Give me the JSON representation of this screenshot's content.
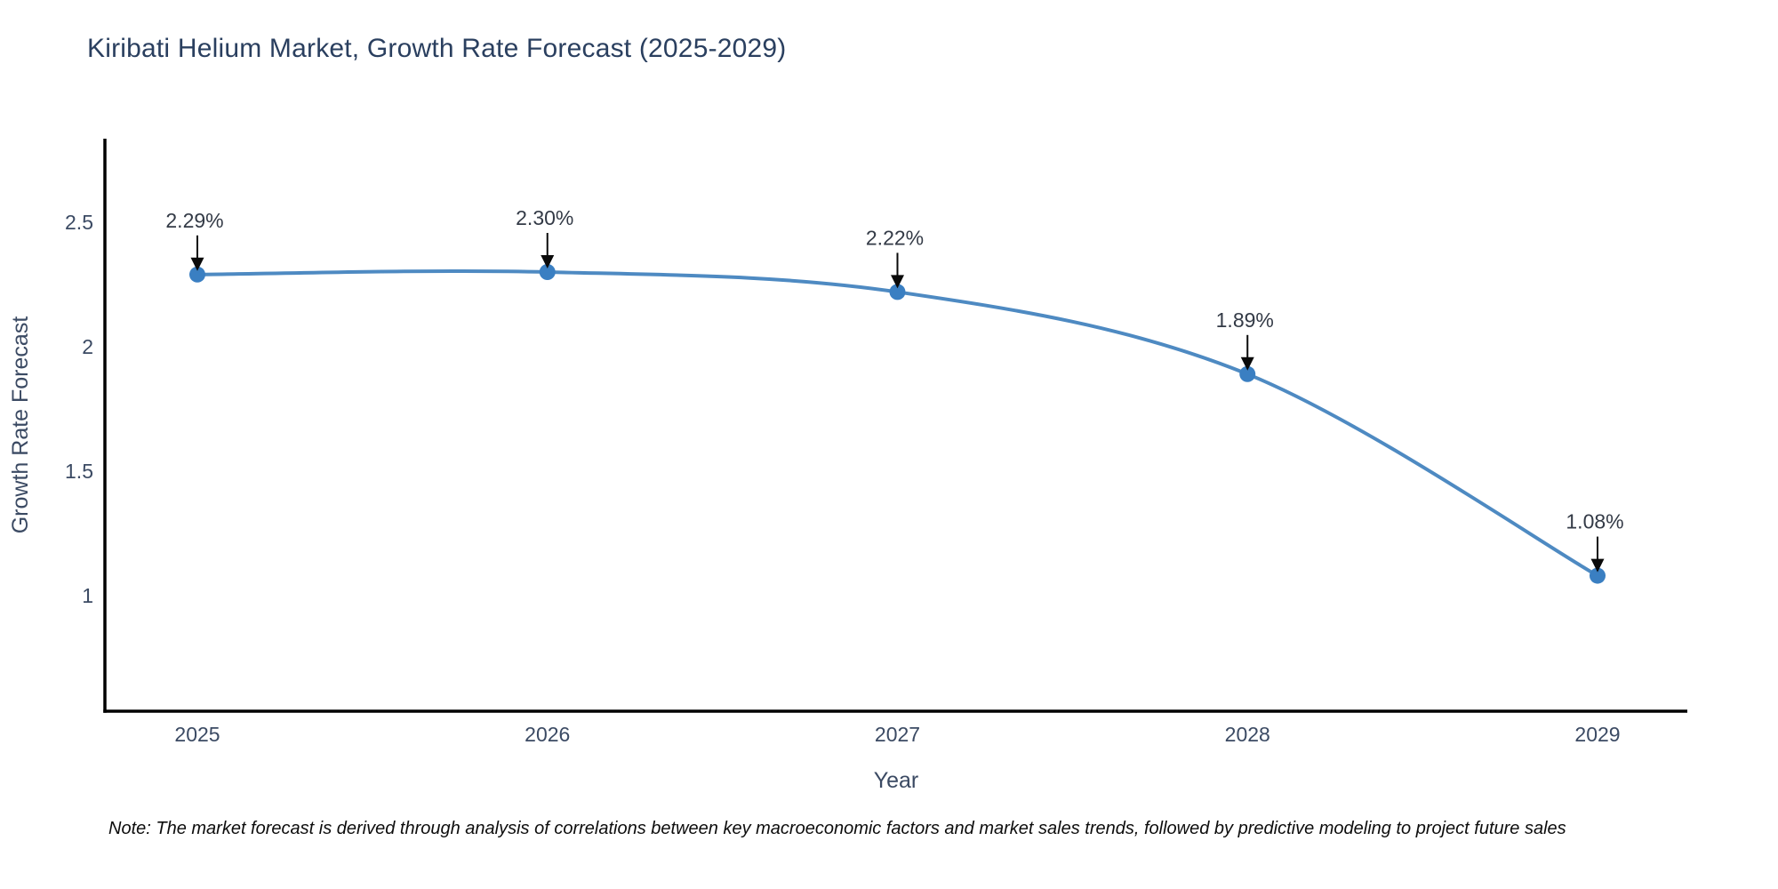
{
  "title": "Kiribati Helium Market, Growth Rate Forecast (2025-2029)",
  "note": "Note: The market forecast is derived through analysis of correlations between key macroeconomic factors and market sales trends, followed by predictive modeling to project future sales",
  "chart_data": {
    "type": "line",
    "line_shape": "spline",
    "title": "Kiribati Helium Market, Growth Rate Forecast (2025-2029)",
    "xlabel": "Year",
    "ylabel": "Growth Rate Forecast",
    "categories": [
      "2025",
      "2026",
      "2027",
      "2028",
      "2029"
    ],
    "series": [
      {
        "name": "Growth Rate Forecast",
        "values": [
          2.29,
          2.3,
          2.22,
          1.89,
          1.08
        ],
        "point_labels": [
          "2.29%",
          "2.30%",
          "2.22%",
          "1.89%",
          "1.08%"
        ]
      }
    ],
    "y_ticks": [
      {
        "label": "1",
        "value": 1.0
      },
      {
        "label": "1.5",
        "value": 1.5
      },
      {
        "label": "2",
        "value": 2.0
      },
      {
        "label": "2.5",
        "value": 2.5
      }
    ],
    "ylim": [
      0.54,
      2.84
    ],
    "grid": false,
    "legend": "none",
    "colors": {
      "line": "#4e8ac2",
      "marker": "#3a7fc2",
      "title_text": "#2a3f5f",
      "axis_text": "#3b4a63",
      "annotation_text": "#333a46",
      "axis_line": "#000000",
      "arrow": "#0a0a0a",
      "background": "#ffffff"
    }
  }
}
